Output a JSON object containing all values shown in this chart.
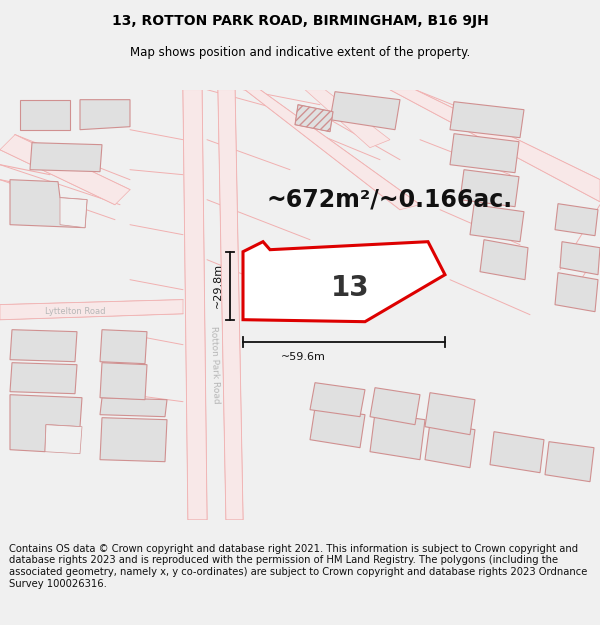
{
  "title_line1": "13, ROTTON PARK ROAD, BIRMINGHAM, B16 9JH",
  "title_line2": "Map shows position and indicative extent of the property.",
  "area_label": "~672m²/~0.166ac.",
  "width_label": "~59.6m",
  "height_label": "~29.8m",
  "number_label": "13",
  "road_label": "Rotton Park Road",
  "street_label": "Lyttelton Road",
  "footer_text": "Contains OS data © Crown copyright and database right 2021. This information is subject to Crown copyright and database rights 2023 and is reproduced with the permission of HM Land Registry. The polygons (including the associated geometry, namely x, y co-ordinates) are subject to Crown copyright and database rights 2023 Ordnance Survey 100026316.",
  "bg_color": "#f0f0f0",
  "map_bg": "#ffffff",
  "road_line": "#f0b0b0",
  "road_fill": "#f8e8e8",
  "building_fill": "#e0e0e0",
  "building_outline": "#d09090",
  "property_color": "#dd0000",
  "dim_color": "#111111",
  "title_fontsize": 10,
  "subtitle_fontsize": 8.5,
  "footer_fontsize": 7.2,
  "area_fontsize": 17,
  "number_fontsize": 20
}
